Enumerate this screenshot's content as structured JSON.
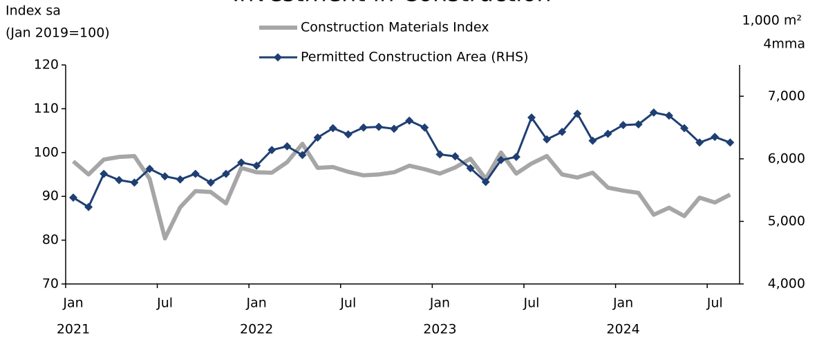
{
  "chart_data": {
    "type": "line",
    "title": "Investment in Construction",
    "y_label_lines": [
      "Index sa",
      "(Jan 2019=100)"
    ],
    "y2_label_lines": [
      "1,000 m²",
      "4mma"
    ],
    "categories": [
      "Jan",
      null,
      null,
      null,
      null,
      null,
      "Jul",
      null,
      null,
      null,
      null,
      null,
      "Jan",
      null,
      null,
      null,
      null,
      null,
      "Jul",
      null,
      null,
      null,
      null,
      null,
      "Jan",
      null,
      null,
      null,
      null,
      null,
      "Jul",
      null,
      null,
      null,
      null,
      null,
      "Jan",
      null,
      null,
      null,
      null,
      null,
      "Jul",
      null
    ],
    "years": [
      "2021",
      "2022",
      "2023",
      "2024"
    ],
    "ylim": [
      70,
      120
    ],
    "yticks": [
      70,
      80,
      90,
      100,
      110,
      120
    ],
    "y2lim": [
      4000,
      7500
    ],
    "y2ticks": [
      {
        "value": 4000,
        "label": "4,000"
      },
      {
        "value": 5000,
        "label": "5,000"
      },
      {
        "value": 6000,
        "label": "6,000"
      },
      {
        "value": 7000,
        "label": "7,000"
      }
    ],
    "series": [
      {
        "name": "Construction Materials Index",
        "color": "#a6a6a6",
        "axis": "y",
        "values": [
          98,
          95,
          98.4,
          99,
          99.2,
          94,
          80.4,
          87.5,
          91.2,
          91,
          88.4,
          96.5,
          95.5,
          95.4,
          97.8,
          102,
          96.5,
          96.7,
          95.6,
          94.8,
          95,
          95.5,
          97,
          96.2,
          95.2,
          96.6,
          98.6,
          94,
          100,
          95.2,
          97.5,
          99.2,
          95,
          94.3,
          95.4,
          92,
          91.3,
          90.8,
          85.8,
          87.4,
          85.5,
          89.7,
          88.6,
          90.4
        ]
      },
      {
        "name": "Permitted Construction Area (RHS)",
        "color": "#1f3f73",
        "axis": "y2",
        "values": [
          5380,
          5230,
          5760,
          5660,
          5620,
          5840,
          5720,
          5670,
          5760,
          5620,
          5760,
          5940,
          5890,
          6140,
          6200,
          6060,
          6340,
          6490,
          6390,
          6500,
          6510,
          6480,
          6610,
          6500,
          6070,
          6040,
          5850,
          5630,
          5980,
          6030,
          6660,
          6310,
          6430,
          6720,
          6290,
          6400,
          6540,
          6550,
          6740,
          6690,
          6490,
          6260,
          6350,
          6260
        ]
      }
    ]
  }
}
